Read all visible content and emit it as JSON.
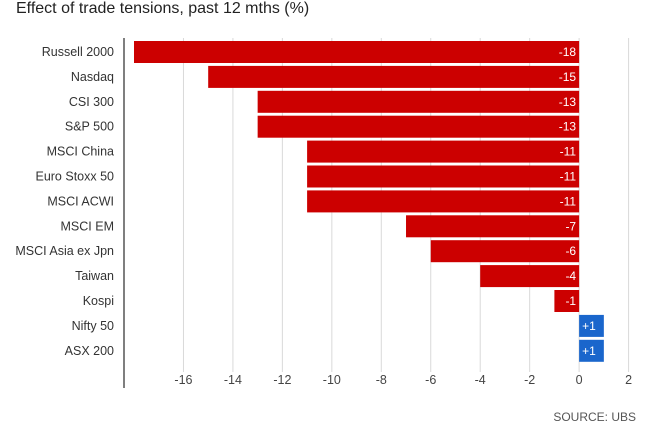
{
  "title": "Effect of trade tensions, past 12 mths (%)",
  "source": "SOURCE: UBS",
  "colors": {
    "negative": "#cc0000",
    "positive": "#1a66cc",
    "grid": "#d9d9d9",
    "axis": "#555555"
  },
  "chart_data": {
    "type": "bar",
    "orientation": "horizontal",
    "title": "Effect of trade tensions, past 12 mths (%)",
    "categories": [
      "Russell 2000",
      "Nasdaq",
      "CSI 300",
      "S&P 500",
      "MSCI China",
      "Euro Stoxx 50",
      "MSCI ACWI",
      "MSCI EM",
      "MSCI Asia ex Jpn",
      "Taiwan",
      "Kospi",
      "Nifty 50",
      "ASX 200"
    ],
    "values": [
      -18,
      -15,
      -13,
      -13,
      -11,
      -11,
      -11,
      -7,
      -6,
      -4,
      -1,
      1,
      1
    ],
    "value_labels": [
      "-18",
      "-15",
      "-13",
      "-13",
      "-11",
      "-11",
      "-11",
      "-7",
      "-6",
      "-4",
      "-1",
      "+1",
      "+1"
    ],
    "xlim": [
      -18,
      2.3
    ],
    "xticks": [
      -16,
      -14,
      -12,
      -10,
      -8,
      -6,
      -4,
      -2,
      0,
      2
    ],
    "xtick_labels": [
      "-16",
      "-14",
      "-12",
      "-10",
      "-8",
      "-6",
      "-4",
      "-2",
      "0",
      "2"
    ],
    "grid": true,
    "xlabel": "",
    "ylabel": ""
  }
}
